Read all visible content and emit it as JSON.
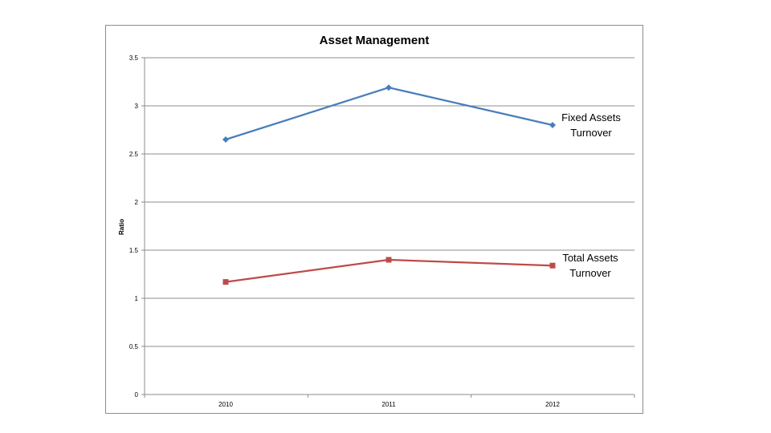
{
  "chart_data": {
    "type": "line",
    "title": "Asset Management",
    "xlabel": "",
    "ylabel": "Ratio",
    "categories": [
      "2010",
      "2011",
      "2012"
    ],
    "ylim": [
      0,
      3.5
    ],
    "yticks": [
      "0",
      "0.5",
      "1",
      "1.5",
      "2",
      "2.5",
      "3",
      "3.5"
    ],
    "grid": true,
    "series": [
      {
        "name": "Fixed Assets Turnover",
        "label_lines": [
          "Fixed Assets",
          "Turnover"
        ],
        "values": [
          2.65,
          3.19,
          2.8
        ],
        "color": "#4a7ebb",
        "marker": "diamond"
      },
      {
        "name": "Total Assets Turnover",
        "label_lines": [
          "Total Assets",
          "Turnover"
        ],
        "values": [
          1.17,
          1.4,
          1.34
        ],
        "color": "#be4b48",
        "marker": "square"
      }
    ]
  }
}
